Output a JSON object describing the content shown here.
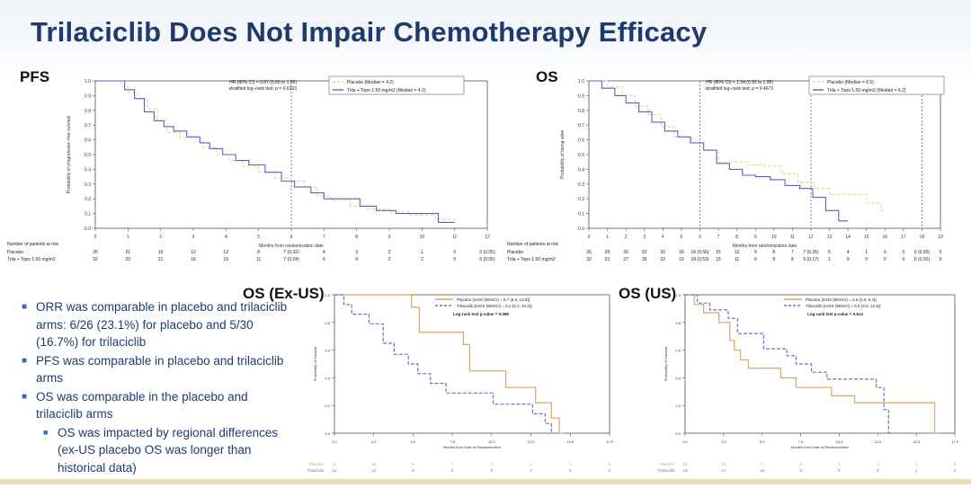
{
  "slide": {
    "title": "Trilaciclib Does Not Impair Chemotherapy Efficacy"
  },
  "labels": {
    "pfs": "PFS",
    "os": "OS",
    "os_exus": "OS (Ex-US)",
    "os_us": "OS (US)"
  },
  "bullets": [
    {
      "text": "ORR was comparable in placebo and trilaciclib arms: 6/26 (23.1%) for placebo and 5/30 (16.7%) for trilaciclib",
      "level": 1
    },
    {
      "text": "PFS was comparable in placebo and trilaciclib arms",
      "level": 1
    },
    {
      "text": "OS was comparable in the placebo and trilaciclib arms",
      "level": 1
    },
    {
      "text": "OS was impacted by regional differences (ex-US placebo OS was longer than historical data)",
      "level": 2
    }
  ],
  "colors": {
    "title": "#1f3b6e",
    "placebo_top": "#f0d58c",
    "trila_top": "#5a5fc9",
    "placebo_bottom": "#d9a85a",
    "trila_bottom": "#6a6fcf"
  },
  "chart_data": [
    {
      "id": "pfs",
      "type": "line",
      "ylabel": "Probability of progression−free survival",
      "xlabel": "Months from randomization date",
      "xlim": [
        0,
        12
      ],
      "ylim": [
        0,
        1
      ],
      "xticks": [
        "0",
        "1",
        "2",
        "3",
        "4",
        "5",
        "6",
        "7",
        "8",
        "9",
        "10",
        "11",
        "12"
      ],
      "yticks": [
        "0.0",
        "0.1",
        "0.2",
        "0.3",
        "0.4",
        "0.5",
        "0.6",
        "0.7",
        "0.8",
        "0.9",
        "1.0"
      ],
      "refline_x": [
        6
      ],
      "stats": [
        "HR (80% CI) = 0.87 (0.60 to 1.26)",
        "stratified log−rank test: p = 0.6233"
      ],
      "legend": [
        "Placebo (Median = 4.2)",
        "Trila + Topo 1.50 mg/m2 (Median = 4.2)"
      ],
      "risk_title": "Number of patients at risk",
      "risk_rows": [
        {
          "label": "Placebo",
          "values": [
            "26",
            "21",
            "16",
            "12",
            "12",
            "8",
            "7 (0.32)",
            "4",
            "3",
            "2",
            "1",
            "0",
            "0 (0.05)"
          ]
        },
        {
          "label": "Trila + Topo 1.50 mg/m2",
          "values": [
            "32",
            "20",
            "21",
            "16",
            "15",
            "11",
            "7 (0.24)",
            "6",
            "4",
            "2",
            "2",
            "0",
            "0 (0.05)"
          ]
        }
      ],
      "series": [
        {
          "name": "Placebo",
          "style": "dashed",
          "x": [
            0,
            0.8,
            1.0,
            1.3,
            1.6,
            1.9,
            2.2,
            2.6,
            3.0,
            3.3,
            3.7,
            4.1,
            4.5,
            5.0,
            5.5,
            6.0,
            6.4,
            6.8,
            7.2,
            7.8,
            8.3,
            9.0,
            9.6,
            10.4,
            11.0
          ],
          "y": [
            1.0,
            0.96,
            0.92,
            0.88,
            0.81,
            0.73,
            0.65,
            0.61,
            0.61,
            0.55,
            0.5,
            0.46,
            0.42,
            0.38,
            0.34,
            0.32,
            0.28,
            0.22,
            0.19,
            0.15,
            0.13,
            0.11,
            0.09,
            0.06,
            0.06
          ]
        },
        {
          "name": "Trila + Topo 1.50 mg/m2",
          "style": "solid",
          "x": [
            0,
            0.9,
            1.2,
            1.5,
            1.8,
            2.1,
            2.4,
            2.8,
            3.2,
            3.5,
            3.9,
            4.3,
            4.7,
            5.2,
            5.7,
            6.1,
            6.6,
            7.0,
            7.5,
            8.1,
            8.6,
            9.2,
            9.8,
            10.5,
            11.0
          ],
          "y": [
            1.0,
            0.94,
            0.88,
            0.79,
            0.73,
            0.69,
            0.66,
            0.62,
            0.58,
            0.54,
            0.5,
            0.46,
            0.43,
            0.38,
            0.32,
            0.28,
            0.24,
            0.2,
            0.2,
            0.15,
            0.12,
            0.1,
            0.1,
            0.04,
            0.04
          ]
        }
      ]
    },
    {
      "id": "os",
      "type": "line",
      "ylabel": "Probability of being alive",
      "xlabel": "Months from randomization date",
      "xlim": [
        0,
        19
      ],
      "ylim": [
        0,
        1
      ],
      "xticks": [
        "0",
        "1",
        "2",
        "3",
        "4",
        "5",
        "6",
        "7",
        "8",
        "9",
        "10",
        "11",
        "12",
        "13",
        "14",
        "15",
        "16",
        "17",
        "18",
        "19"
      ],
      "yticks": [
        "0.0",
        "0.1",
        "0.2",
        "0.3",
        "0.4",
        "0.5",
        "0.6",
        "0.7",
        "0.8",
        "0.9",
        "1.0"
      ],
      "refline_x": [
        6,
        12,
        18
      ],
      "stats": [
        "HR (80% CI) = 1.34 (0.92 to 1.95)",
        "stratified log−rank test: p = 0.4673"
      ],
      "legend": [
        "Placebo (Median = 6.5)",
        "Trila + Topo 1.50 mg/m2 (Median = 6.2)"
      ],
      "risk_title": "Number of patients at risk",
      "risk_rows": [
        {
          "label": "Placebo",
          "values": [
            "26",
            "26",
            "26",
            "22",
            "20",
            "18",
            "16 (0.56)",
            "15",
            "12",
            "9",
            "8",
            "7",
            "7 (0.26)",
            "5",
            "4",
            "1",
            "0",
            "0",
            "0 (0.00)",
            "0"
          ]
        },
        {
          "label": "Trila + Topo 1.50 mg/m2",
          "values": [
            "32",
            "31",
            "27",
            "26",
            "22",
            "19",
            "18 (0.53)",
            "15",
            "11",
            "9",
            "9",
            "8",
            "5 (0.17)",
            "1",
            "0",
            "0",
            "0",
            "0",
            "0 (0.00)",
            "0"
          ]
        }
      ],
      "series": [
        {
          "name": "Placebo",
          "style": "dashed",
          "x": [
            0,
            1.0,
            1.8,
            2.5,
            3.2,
            3.9,
            4.6,
            5.4,
            6.2,
            7.0,
            7.8,
            8.6,
            9.5,
            10.4,
            11.3,
            12.2,
            13.0,
            14.0,
            15.0,
            15.8,
            16.0
          ],
          "y": [
            1.0,
            0.96,
            0.9,
            0.83,
            0.77,
            0.69,
            0.62,
            0.58,
            0.53,
            0.45,
            0.45,
            0.43,
            0.42,
            0.37,
            0.31,
            0.27,
            0.23,
            0.23,
            0.17,
            0.12,
            0.12
          ]
        },
        {
          "name": "Trila + Topo 1.50 mg/m2",
          "style": "solid",
          "x": [
            0,
            0.7,
            1.4,
            2.0,
            2.7,
            3.4,
            4.1,
            4.8,
            5.5,
            6.2,
            6.9,
            7.6,
            8.3,
            9.0,
            9.8,
            10.6,
            11.4,
            12.1,
            12.8,
            13.5,
            14.0
          ],
          "y": [
            1.0,
            0.95,
            0.9,
            0.85,
            0.79,
            0.72,
            0.66,
            0.62,
            0.58,
            0.53,
            0.44,
            0.4,
            0.36,
            0.35,
            0.33,
            0.29,
            0.27,
            0.21,
            0.12,
            0.05,
            0.05
          ]
        }
      ]
    },
    {
      "id": "os_exus",
      "type": "line",
      "ylabel": "Probability of Survival",
      "xlabel": "Months from Date of Randomization",
      "xlim": [
        0,
        17.5
      ],
      "ylim": [
        0,
        1
      ],
      "xticks": [
        "0.0",
        "2.5",
        "5.0",
        "7.5",
        "10.0",
        "12.5",
        "15.0",
        "17.5"
      ],
      "yticks": [
        "0.0",
        "0.2",
        "0.4",
        "0.6",
        "0.8",
        "1.0"
      ],
      "stats": [
        "Log-rank test p-value = 0.099"
      ],
      "legend": [
        "Placebo [mOS (95%CI) = 8.7 (5.4, 13.8)]",
        "Trilaciclib [mOS (95%CI) = 6.2 (2.2, 10.2)]"
      ],
      "risk_rows": [
        {
          "label": "Placebo",
          "values": [
            "11",
            "10",
            "9",
            "7",
            "4",
            "3",
            "1",
            "0"
          ]
        },
        {
          "label": "Trilaciclib",
          "values": [
            "14",
            "13",
            "9",
            "8",
            "5",
            "2",
            "0",
            "0"
          ]
        }
      ],
      "series": [
        {
          "name": "Placebo",
          "style": "solid",
          "x": [
            0,
            4.5,
            4.9,
            5.4,
            8.2,
            8.6,
            10.9,
            12.8,
            13.8,
            14.3,
            14.6
          ],
          "y": [
            1.0,
            1.0,
            0.91,
            0.73,
            0.64,
            0.45,
            0.33,
            0.22,
            0.11,
            0.0,
            0.0
          ]
        },
        {
          "name": "Trilaciclib",
          "style": "dashed",
          "x": [
            0,
            0.6,
            1.1,
            2.2,
            3.1,
            3.8,
            4.7,
            5.3,
            6.1,
            7.1,
            8.6,
            10.1,
            11.2,
            12.6,
            13.4,
            13.8
          ],
          "y": [
            1.0,
            0.93,
            0.86,
            0.79,
            0.65,
            0.57,
            0.5,
            0.43,
            0.36,
            0.29,
            0.29,
            0.21,
            0.21,
            0.14,
            0.07,
            0.0
          ]
        }
      ]
    },
    {
      "id": "os_us",
      "type": "line",
      "ylabel": "Probability of Survival",
      "xlabel": "Months from Date of Randomization",
      "xlim": [
        0,
        17.5
      ],
      "ylim": [
        0,
        1
      ],
      "xticks": [
        "0.0",
        "2.5",
        "5.0",
        "7.5",
        "10.0",
        "12.5",
        "15.0",
        "17.5"
      ],
      "yticks": [
        "0.0",
        "0.2",
        "0.4",
        "0.6",
        "0.8",
        "1.0"
      ],
      "stats": [
        "Log-rank test p-value = 0.614"
      ],
      "legend": [
        "Placebo [mOS (95%CI) = 4.6 (2.8, 8.4)]",
        "Trilaciclib [mOS (95%CI) = 6.5 (3.9, 12.5)]"
      ],
      "risk_rows": [
        {
          "label": "Placebo",
          "values": [
            "15",
            "13",
            "7",
            "5",
            "3",
            "1",
            "1",
            "0"
          ]
        },
        {
          "label": "Trilaciclib",
          "values": [
            "18",
            "17",
            "10",
            "8",
            "5",
            "4",
            "1",
            "0"
          ]
        }
      ],
      "series": [
        {
          "name": "Placebo",
          "style": "solid",
          "x": [
            0,
            0.6,
            1.2,
            2.2,
            2.9,
            3.2,
            3.6,
            4.1,
            5.1,
            6.2,
            7.2,
            8.4,
            9.5,
            10.5,
            11.0,
            16.2,
            16.4
          ],
          "y": [
            1.0,
            0.93,
            0.87,
            0.8,
            0.67,
            0.6,
            0.53,
            0.47,
            0.47,
            0.4,
            0.33,
            0.33,
            0.27,
            0.27,
            0.22,
            0.0,
            0.0
          ]
        },
        {
          "name": "Trilaciclib",
          "style": "dashed",
          "x": [
            0,
            0.8,
            1.6,
            2.8,
            3.4,
            4.1,
            5.1,
            6.6,
            7.2,
            8.2,
            9.2,
            10.3,
            12.4,
            12.9,
            13.2,
            13.4
          ],
          "y": [
            1.0,
            0.94,
            0.89,
            0.83,
            0.72,
            0.72,
            0.61,
            0.56,
            0.5,
            0.44,
            0.39,
            0.39,
            0.33,
            0.17,
            0.0,
            0.0
          ]
        }
      ]
    }
  ]
}
